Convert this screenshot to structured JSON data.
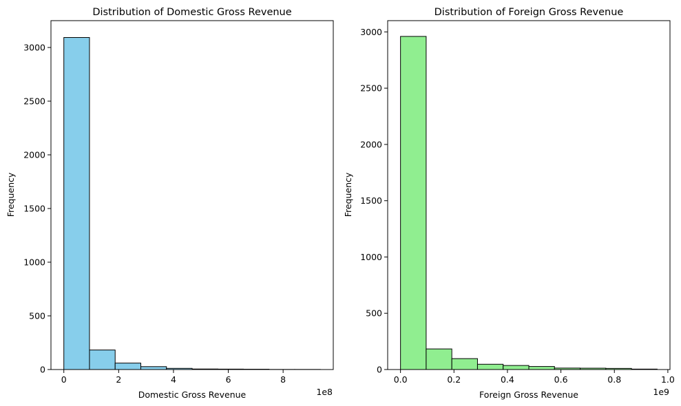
{
  "chart_data": [
    {
      "type": "bar",
      "title": "Distribution of Domestic Gross Revenue",
      "xlabel": "Domestic Gross Revenue",
      "ylabel": "Frequency",
      "offset_label": "1e8",
      "color": "#87CEEB",
      "edge_color": "#000000",
      "xlim": [
        -0.47,
        9.83
      ],
      "ylim": [
        0,
        3250
      ],
      "xticks": [
        0,
        2,
        4,
        6,
        8
      ],
      "yticks": [
        0,
        500,
        1000,
        1500,
        2000,
        2500,
        3000
      ],
      "bin_edges": [
        0.0,
        0.936,
        1.872,
        2.808,
        3.744,
        4.68,
        5.616,
        6.552,
        7.488,
        8.424,
        9.36
      ],
      "values": [
        3093,
        182,
        60,
        27,
        11,
        5,
        4,
        3,
        1,
        1
      ]
    },
    {
      "type": "bar",
      "title": "Distribution of Foreign Gross Revenue",
      "xlabel": "Foreign Gross Revenue",
      "ylabel": "Frequency",
      "offset_label": "1e9",
      "color": "#90EE90",
      "edge_color": "#000000",
      "xlim": [
        -0.048,
        1.008
      ],
      "ylim": [
        0,
        3100
      ],
      "xticks": [
        0.0,
        0.2,
        0.4,
        0.6,
        0.8,
        1.0
      ],
      "ytick_labels": [
        "0",
        "500",
        "1000",
        "1500",
        "2000",
        "2500",
        "3000"
      ],
      "yticks": [
        0,
        500,
        1000,
        1500,
        2000,
        2500,
        3000
      ],
      "xtick_labels": [
        "0.0",
        "0.2",
        "0.4",
        "0.6",
        "0.8",
        "1.0"
      ],
      "bin_edges": [
        0.0,
        0.096,
        0.192,
        0.288,
        0.384,
        0.48,
        0.576,
        0.672,
        0.768,
        0.864,
        0.96
      ],
      "values": [
        2960,
        183,
        97,
        47,
        36,
        27,
        13,
        12,
        10,
        4
      ]
    }
  ]
}
